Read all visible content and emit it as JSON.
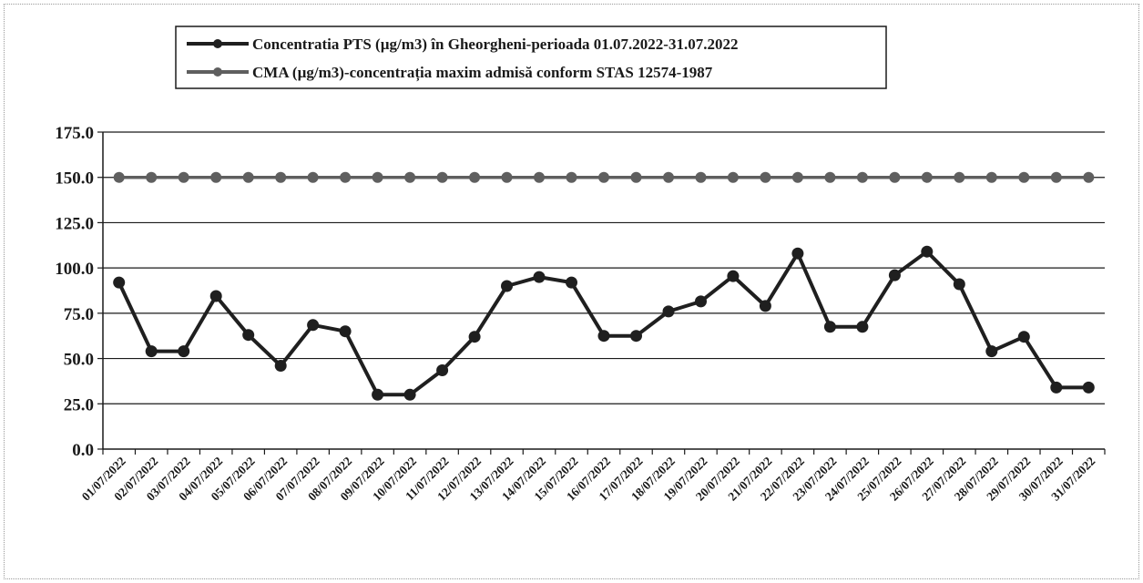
{
  "chart_data": {
    "type": "line",
    "categories": [
      "01/07/2022",
      "02/07/2022",
      "03/07/2022",
      "04/07/2022",
      "05/07/2022",
      "06/07/2022",
      "07/07/2022",
      "08/07/2022",
      "09/07/2022",
      "10/07/2022",
      "11/07/2022",
      "12/07/2022",
      "13/07/2022",
      "14/07/2022",
      "15/07/2022",
      "16/07/2022",
      "17/07/2022",
      "18/07/2022",
      "19/07/2022",
      "20/07/2022",
      "21/07/2022",
      "22/07/2022",
      "23/07/2022",
      "24/07/2022",
      "25/07/2022",
      "26/07/2022",
      "27/07/2022",
      "28/07/2022",
      "29/07/2022",
      "30/07/2022",
      "31/07/2022"
    ],
    "series": [
      {
        "name": "Concentratia PTS (µg/m3) în Gheorgheni-perioada 01.07.2022-31.07.2022",
        "color": "#1f1f1f",
        "values": [
          92,
          54,
          54,
          84.5,
          63,
          46,
          68.5,
          65,
          30,
          30,
          43.5,
          62,
          90,
          95,
          92,
          62.5,
          62.5,
          76,
          81.5,
          95.5,
          79,
          108,
          67.5,
          67.5,
          96,
          109,
          91,
          54,
          62,
          34,
          34
        ]
      },
      {
        "name": "CMA (µg/m3)-concentrația maxim admisă conform STAS 12574-1987",
        "color": "#5f5f5f",
        "values": [
          150,
          150,
          150,
          150,
          150,
          150,
          150,
          150,
          150,
          150,
          150,
          150,
          150,
          150,
          150,
          150,
          150,
          150,
          150,
          150,
          150,
          150,
          150,
          150,
          150,
          150,
          150,
          150,
          150,
          150,
          150
        ]
      }
    ],
    "yticks": [
      "0.0",
      "25.0",
      "50.0",
      "75.0",
      "100.0",
      "125.0",
      "150.0",
      "175.0"
    ],
    "ylim": [
      0,
      175
    ],
    "grid": true,
    "legend_position": "top-left"
  }
}
